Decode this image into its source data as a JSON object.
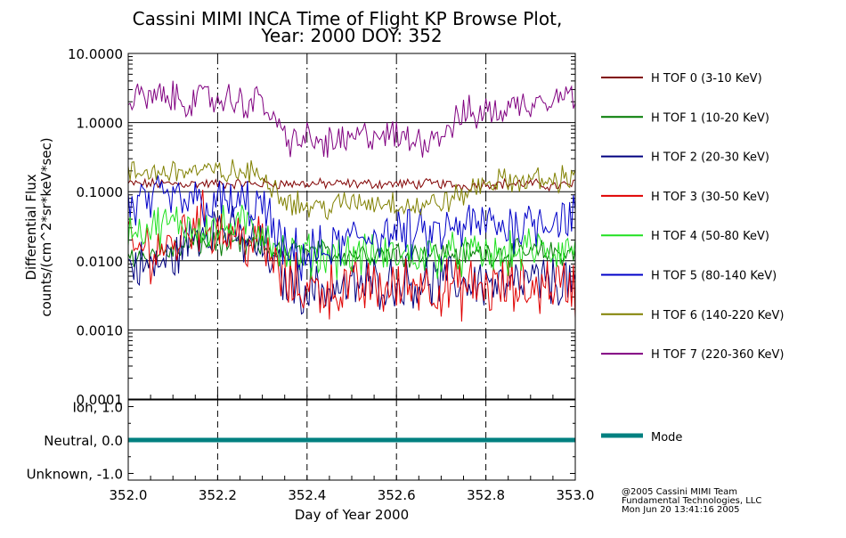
{
  "chart_data": {
    "type": "line",
    "title": [
      "Cassini MIMI INCA Time of Flight KP Browse Plot,",
      "Year: 2000 DOY: 352"
    ],
    "xlabel": "Day of Year 2000",
    "ylabel": [
      "Differential Flux",
      "counts/(cm^2*sr*keV*sec)"
    ],
    "xlim": [
      352.0,
      353.0
    ],
    "ylim": [
      0.0001,
      10.0
    ],
    "yscale": "log",
    "x_ticks": [
      352.0,
      352.2,
      352.4,
      352.6,
      352.8,
      353.0
    ],
    "x_tick_labels": [
      "352.0",
      "352.2",
      "352.4",
      "352.6",
      "352.8",
      "353.0"
    ],
    "y_ticks": [
      10.0,
      1.0,
      0.1,
      0.01,
      0.001,
      0.0001
    ],
    "y_tick_labels": [
      "10.0000",
      "1.0000",
      "0.1000",
      "0.0100",
      "0.0010",
      "0.0001"
    ],
    "x": [
      352.0,
      352.05,
      352.1,
      352.15,
      352.2,
      352.25,
      352.3,
      352.35,
      352.4,
      352.45,
      352.5,
      352.55,
      352.6,
      352.65,
      352.7,
      352.75,
      352.8,
      352.85,
      352.9,
      352.95,
      353.0
    ],
    "series": [
      {
        "name": "H TOF 0 (3-10 KeV)",
        "color": "#800000",
        "noise": 0.06,
        "values": [
          0.13,
          0.13,
          0.13,
          0.13,
          0.13,
          0.13,
          0.13,
          0.13,
          0.13,
          0.13,
          0.13,
          0.13,
          0.13,
          0.13,
          0.13,
          0.12,
          0.13,
          0.13,
          0.13,
          0.12,
          0.13
        ]
      },
      {
        "name": "H TOF 1 (10-20 KeV)",
        "color": "#007a00",
        "noise": 0.15,
        "values": [
          0.012,
          0.012,
          0.014,
          0.017,
          0.018,
          0.016,
          0.015,
          0.014,
          0.013,
          0.013,
          0.013,
          0.013,
          0.013,
          0.013,
          0.013,
          0.013,
          0.013,
          0.013,
          0.013,
          0.013,
          0.013
        ]
      },
      {
        "name": "H TOF 2 (20-30 KeV)",
        "color": "#000080",
        "noise": 0.3,
        "values": [
          0.009,
          0.008,
          0.011,
          0.025,
          0.035,
          0.02,
          0.016,
          0.005,
          0.004,
          0.004,
          0.004,
          0.005,
          0.005,
          0.005,
          0.005,
          0.005,
          0.005,
          0.004,
          0.005,
          0.005,
          0.005
        ]
      },
      {
        "name": "H TOF 3 (30-50 KeV)",
        "color": "#e00000",
        "noise": 0.35,
        "values": [
          0.014,
          0.015,
          0.016,
          0.04,
          0.03,
          0.022,
          0.017,
          0.005,
          0.004,
          0.004,
          0.004,
          0.004,
          0.004,
          0.005,
          0.004,
          0.004,
          0.004,
          0.004,
          0.004,
          0.005,
          0.004
        ]
      },
      {
        "name": "H TOF 4 (50-80 KeV)",
        "color": "#20e020",
        "noise": 0.25,
        "values": [
          0.028,
          0.03,
          0.034,
          0.033,
          0.03,
          0.032,
          0.03,
          0.012,
          0.012,
          0.012,
          0.012,
          0.012,
          0.012,
          0.012,
          0.012,
          0.012,
          0.012,
          0.012,
          0.015,
          0.013,
          0.016
        ]
      },
      {
        "name": "H TOF 5 (80-140 KeV)",
        "color": "#0000c8",
        "noise": 0.3,
        "values": [
          0.06,
          0.07,
          0.075,
          0.07,
          0.065,
          0.065,
          0.06,
          0.012,
          0.012,
          0.014,
          0.02,
          0.025,
          0.025,
          0.022,
          0.025,
          0.03,
          0.035,
          0.03,
          0.04,
          0.04,
          0.045
        ]
      },
      {
        "name": "H TOF 6 (140-220 KeV)",
        "color": "#808000",
        "noise": 0.15,
        "values": [
          0.18,
          0.19,
          0.2,
          0.2,
          0.19,
          0.19,
          0.18,
          0.08,
          0.06,
          0.06,
          0.07,
          0.07,
          0.07,
          0.06,
          0.07,
          0.09,
          0.14,
          0.14,
          0.15,
          0.14,
          0.18
        ]
      },
      {
        "name": "H TOF 7 (220-360 KeV)",
        "color": "#800080",
        "noise": 0.2,
        "values": [
          2.2,
          2.3,
          2.2,
          2.1,
          2.2,
          2.0,
          2.0,
          0.6,
          0.55,
          0.5,
          0.55,
          0.7,
          0.6,
          0.55,
          0.7,
          1.3,
          1.4,
          1.6,
          2.0,
          2.6,
          2.5
        ]
      }
    ],
    "mode_panel": {
      "y_tick_labels": [
        "Ion, 1.0",
        "Neutral, 0.0",
        "Unknown, -1.0"
      ],
      "ylim": [
        -1.2,
        1.2
      ],
      "legend": "Mode",
      "color": "#008080",
      "values": [
        0.0,
        0.0,
        0.0,
        0.0,
        0.0,
        0.0,
        0.0,
        0.0,
        0.0,
        0.0,
        0.0,
        0.0,
        0.0,
        0.0,
        0.0,
        0.0,
        0.0,
        0.0,
        0.0,
        0.0,
        0.0
      ]
    }
  },
  "footer": [
    "@2005 Cassini MIMI Team",
    "Fundamental Technologies, LLC",
    "Mon Jun 20 13:41:16 2005"
  ]
}
